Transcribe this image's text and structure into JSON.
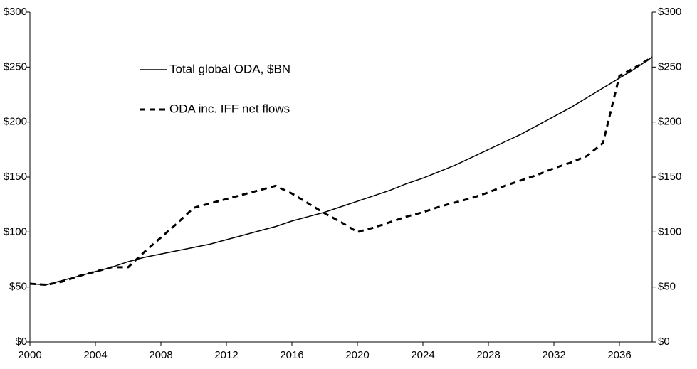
{
  "chart_data": {
    "type": "line",
    "x": [
      2000,
      2001,
      2002,
      2003,
      2004,
      2005,
      2006,
      2007,
      2008,
      2009,
      2010,
      2011,
      2012,
      2013,
      2014,
      2015,
      2016,
      2017,
      2018,
      2019,
      2020,
      2021,
      2022,
      2023,
      2024,
      2025,
      2026,
      2027,
      2028,
      2029,
      2030,
      2031,
      2032,
      2033,
      2034,
      2035,
      2036,
      2037,
      2038
    ],
    "series": [
      {
        "name": "Total global ODA, $BN",
        "color": "#000000",
        "dash": false,
        "values": [
          53,
          52,
          56,
          60,
          64,
          68,
          73,
          77,
          80,
          83,
          86,
          89,
          93,
          97,
          101,
          105,
          110,
          114,
          118,
          123,
          128,
          133,
          138,
          144,
          149,
          155,
          161,
          168,
          175,
          182,
          189,
          197,
          205,
          213,
          222,
          231,
          240,
          249,
          259
        ]
      },
      {
        "name": "ODA inc. IFF net flows",
        "color": "#000000",
        "dash": true,
        "values": [
          53,
          52,
          55,
          60,
          64,
          68,
          68,
          82,
          95,
          108,
          122,
          126,
          130,
          134,
          138,
          142,
          135,
          126,
          117,
          109,
          100,
          104,
          109,
          114,
          118,
          123,
          127,
          131,
          136,
          142,
          147,
          152,
          158,
          163,
          169,
          181,
          242,
          250,
          259
        ]
      }
    ],
    "xlim": [
      2000,
      2038
    ],
    "xticks": [
      2000,
      2004,
      2008,
      2012,
      2016,
      2020,
      2024,
      2028,
      2032,
      2036
    ],
    "ylim": [
      0,
      300
    ],
    "yticks": [
      {
        "value": 0,
        "label": "$0"
      },
      {
        "value": 50,
        "label": "$50"
      },
      {
        "value": 100,
        "label": "$100"
      },
      {
        "value": 150,
        "label": "$150"
      },
      {
        "value": 200,
        "label": "$200"
      },
      {
        "value": 250,
        "label": "$250"
      },
      {
        "value": 300,
        "label": "$300"
      }
    ],
    "y2lim": [
      0,
      300
    ],
    "y2ticks": [
      {
        "value": 0,
        "label": "$0"
      },
      {
        "value": 50,
        "label": "$50"
      },
      {
        "value": 100,
        "label": "$100"
      },
      {
        "value": 150,
        "label": "$150"
      },
      {
        "value": 200,
        "label": "$200"
      },
      {
        "value": 250,
        "label": "$250"
      },
      {
        "value": 300,
        "label": "$300"
      }
    ],
    "grid": false,
    "legend": "top-left"
  }
}
